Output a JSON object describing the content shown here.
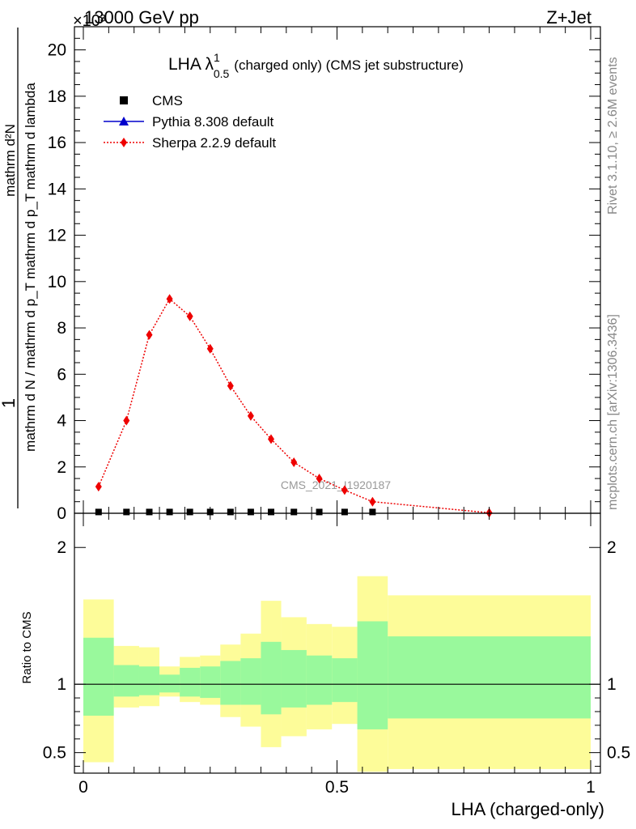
{
  "header": {
    "left": "13000 GeV pp",
    "right": "Z+Jet",
    "exponent_label": "×10³"
  },
  "side_notes": {
    "rivet": "Rivet 3.1.10, ≥ 2.6M events",
    "mcplots": "mcplots.cern.ch [arXiv:1306.3436]"
  },
  "watermark": "CMS_2021_I1920187",
  "chart_data": [
    {
      "type": "line",
      "title_main": "LHA λ",
      "title_sup": "1",
      "title_sub": "0.5",
      "title_rest": "(charged only) (CMS jet substructure)",
      "ylabel_numerator": "1",
      "ylabel_den_a": "mathrm d N / mathrm d p",
      "ylabel_den_b": "mathrm d p",
      "ylabel_right_a": "mathrm d",
      "ylabel_right_b": "N",
      "ylabel_right_c": "mathrm d p",
      "ylabel_right_d": "mathrm d p",
      "ylabel_right_e": "mathrm d lambda",
      "ylabel_top_full": "mathrm d²N",
      "ylabel_den_full": "mathrm d N / mathrm d p_T mathrm d p_T mathrm d lambda",
      "ylim": [
        0,
        21
      ],
      "yticks": [
        0,
        2,
        4,
        6,
        8,
        10,
        12,
        14,
        16,
        18,
        20
      ],
      "y_multiplier": 1000,
      "legend": [
        {
          "label": "CMS",
          "color": "#000000",
          "marker": "square"
        },
        {
          "label": "Pythia 8.308 default",
          "color": "#0000cc",
          "marker": "triangle"
        },
        {
          "label": "Sherpa 2.2.9 default",
          "color": "#ee0000",
          "marker": "diamond"
        }
      ],
      "series": [
        {
          "name": "CMS",
          "x": [
            0.03,
            0.085,
            0.13,
            0.17,
            0.21,
            0.25,
            0.29,
            0.33,
            0.37,
            0.415,
            0.465,
            0.515,
            0.57
          ],
          "y": [
            0.02,
            0.02,
            0.02,
            0.02,
            0.02,
            0.02,
            0.02,
            0.02,
            0.02,
            0.02,
            0.02,
            0.02,
            0.02
          ]
        },
        {
          "name": "Sherpa 2.2.9 default",
          "x": [
            0.03,
            0.085,
            0.13,
            0.17,
            0.21,
            0.25,
            0.29,
            0.33,
            0.37,
            0.415,
            0.465,
            0.515,
            0.57,
            0.8
          ],
          "y": [
            1.15,
            4.0,
            7.7,
            9.25,
            8.5,
            7.1,
            5.5,
            4.2,
            3.2,
            2.2,
            1.5,
            1.0,
            0.5,
            0.02
          ]
        }
      ]
    },
    {
      "type": "area",
      "ylabel": "Ratio to CMS",
      "xlabel": "LHA (charged-only)",
      "xlim": [
        0,
        1
      ],
      "xticks": [
        0,
        0.5,
        1
      ],
      "xtick_labels": [
        "0",
        "0.5",
        "1"
      ],
      "ylim": [
        0.35,
        2.25
      ],
      "yticks": [
        0.5,
        1,
        2
      ],
      "ytick_labels": [
        "0.5",
        "1",
        "2"
      ],
      "bins": [
        {
          "lo": 0.0,
          "hi": 0.06,
          "g_lo": 0.77,
          "g_hi": 1.34,
          "y_lo": 0.43,
          "y_hi": 1.62
        },
        {
          "lo": 0.06,
          "hi": 0.11,
          "g_lo": 0.91,
          "g_hi": 1.14,
          "y_lo": 0.83,
          "y_hi": 1.28
        },
        {
          "lo": 0.11,
          "hi": 0.15,
          "g_lo": 0.92,
          "g_hi": 1.13,
          "y_lo": 0.84,
          "y_hi": 1.27
        },
        {
          "lo": 0.15,
          "hi": 0.19,
          "g_lo": 0.94,
          "g_hi": 1.07,
          "y_lo": 0.91,
          "y_hi": 1.13
        },
        {
          "lo": 0.19,
          "hi": 0.23,
          "g_lo": 0.91,
          "g_hi": 1.12,
          "y_lo": 0.87,
          "y_hi": 1.2
        },
        {
          "lo": 0.23,
          "hi": 0.27,
          "g_lo": 0.9,
          "g_hi": 1.13,
          "y_lo": 0.85,
          "y_hi": 1.21
        },
        {
          "lo": 0.27,
          "hi": 0.31,
          "g_lo": 0.85,
          "g_hi": 1.17,
          "y_lo": 0.76,
          "y_hi": 1.29
        },
        {
          "lo": 0.31,
          "hi": 0.35,
          "g_lo": 0.85,
          "g_hi": 1.19,
          "y_lo": 0.69,
          "y_hi": 1.37
        },
        {
          "lo": 0.35,
          "hi": 0.39,
          "g_lo": 0.78,
          "g_hi": 1.31,
          "y_lo": 0.54,
          "y_hi": 1.61
        },
        {
          "lo": 0.39,
          "hi": 0.44,
          "g_lo": 0.83,
          "g_hi": 1.25,
          "y_lo": 0.62,
          "y_hi": 1.49
        },
        {
          "lo": 0.44,
          "hi": 0.49,
          "g_lo": 0.85,
          "g_hi": 1.21,
          "y_lo": 0.67,
          "y_hi": 1.44
        },
        {
          "lo": 0.49,
          "hi": 0.54,
          "g_lo": 0.87,
          "g_hi": 1.19,
          "y_lo": 0.71,
          "y_hi": 1.42
        },
        {
          "lo": 0.54,
          "hi": 0.6,
          "g_lo": 0.67,
          "g_hi": 1.46,
          "y_lo": 0.36,
          "y_hi": 1.79
        },
        {
          "lo": 0.6,
          "hi": 1.0,
          "g_lo": 0.75,
          "g_hi": 1.35,
          "y_lo": 0.38,
          "y_hi": 1.65
        }
      ],
      "colors": {
        "green": "#99f99c",
        "yellow": "#fdfc99",
        "ref_line": "#000000"
      }
    }
  ]
}
